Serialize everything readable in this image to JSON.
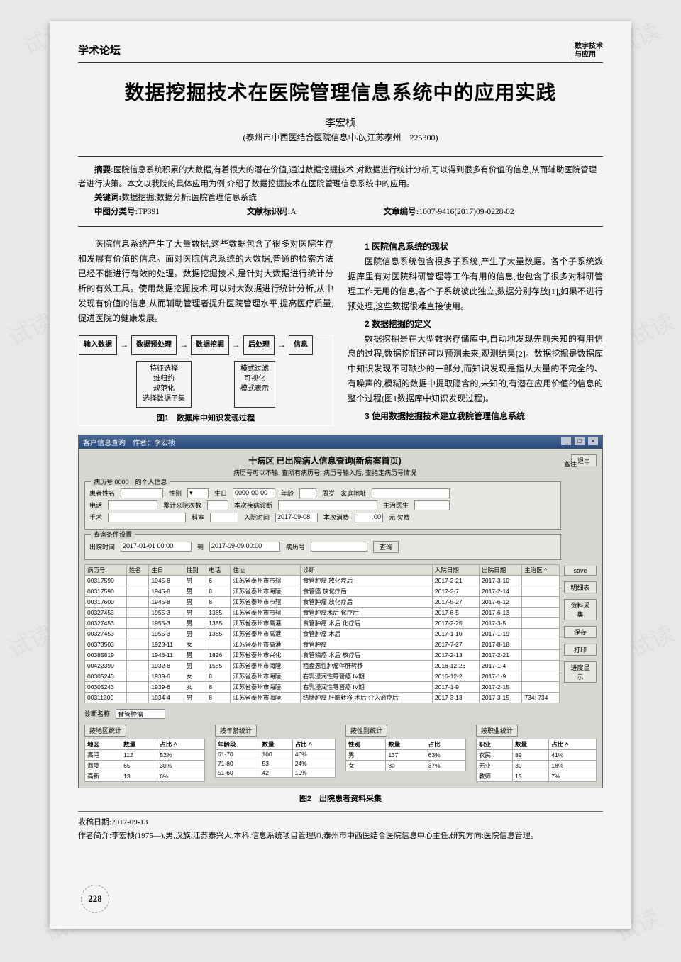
{
  "header": {
    "section": "学术论坛",
    "journal_l1": "数字技术",
    "journal_l2": "与应用"
  },
  "title": "数据挖掘技术在医院管理信息系统中的应用实践",
  "author": "李宏桢",
  "affiliation": "(泰州市中西医结合医院信息中心,江苏泰州　225300)",
  "abstract_label": "摘要:",
  "abstract": "医院信息系统积累的大数据,有着很大的潜在价值,通过数据挖掘技术,对数据进行统计分析,可以得到很多有价值的信息,从而辅助医院管理者进行决策。本文以我院的具体应用为例,介绍了数据挖掘技术在医院管理信息系统中的应用。",
  "keywords_label": "关键词:",
  "keywords": "数据挖掘;数据分析;医院管理信息系统",
  "meta": {
    "clc_label": "中图分类号:",
    "clc": "TP391",
    "doc_code_label": "文献标识码:",
    "doc_code": "A",
    "article_id_label": "文章编号:",
    "article_id": "1007-9416(2017)09-0228-02"
  },
  "body": {
    "left_p1": "医院信息系统产生了大量数据,这些数据包含了很多对医院生存和发展有价值的信息。面对医院信息系统的大数据,普通的检索方法已经不能进行有效的处理。数据挖掘技术,是针对大数据进行统计分析的有效工具。使用数据挖掘技术,可以对大数据进行统计分析,从中发现有价值的信息,从而辅助管理者提升医院管理水平,提高医疗质量,促进医院的健康发展。",
    "h1": "1 医院信息系统的现状",
    "p_h1": "医院信息系统包含很多子系统,产生了大量数据。各个子系统数据库里有对医院科研管理等工作有用的信息,也包含了很多对科研管理工作无用的信息,各个子系统彼此独立,数据分别存放[1],如果不进行预处理,这些数据很难直接使用。",
    "h2": "2 数据挖掘的定义",
    "p_h2": "数据挖掘是在大型数据存储库中,自动地发现先前未知的有用信息的过程,数据挖掘还可以预测未来,观测结果[2]。数据挖掘是数据库中知识发现不可缺少的一部分,而知识发现是指从大量的不完全的、有噪声的,模糊的数据中提取隐含的,未知的,有潜在应用价值的信息的整个过程(图1数据库中知识发现过程)。",
    "h3": "3 使用数据挖掘技术建立我院管理信息系统"
  },
  "flowchart": {
    "nodes": [
      "输入数据",
      "数据预处理",
      "数据挖掘",
      "后处理",
      "信息"
    ],
    "sub1": "特征选择\n维归约\n规范化\n选择数据子集",
    "sub2": "模式过滤\n可视化\n模式表示",
    "caption": "图1　数据库中知识发现过程"
  },
  "app": {
    "title": "客户信息查询　作者：李宏桢",
    "panel_title": "十病区 已出院病人信息查询(新病案首页)",
    "panel_sub": "病历号可以不输, 查所有病历号; 病历号输入后, 查指定病历号情况",
    "exit_btn": "退出",
    "remarks_label": "备注",
    "form": {
      "record_legend": "病历号 0000　的个人信息",
      "labels": {
        "name": "患者姓名",
        "sex": "性别",
        "birth": "生日",
        "birth_ph": "0000-00-00",
        "age": "年龄",
        "age_unit": "周岁",
        "addr": "家庭地址",
        "phone": "电话",
        "visits": "累计来院次数",
        "diag": "本次疾病诊断",
        "doctor": "主治医生",
        "surgery": "手术",
        "dept": "科室",
        "admit": "入院时间",
        "admit_v": "2017-09-08",
        "fee": "本次消费",
        "fee_v": ".00",
        "fee_unit": "元 欠费"
      },
      "cond_legend": "查询条件设置",
      "cond": {
        "from_label": "出院时间",
        "from": "2017-01-01 00:00",
        "to_label": "到",
        "to": "2017-09-09 00:00",
        "rec_label": "病历号",
        "search": "查询"
      }
    },
    "table": {
      "columns": [
        "病历号",
        "姓名",
        "生日",
        "性别",
        "电话",
        "住址",
        "诊断",
        "入院日期",
        "出院日期",
        "主治医 ^"
      ],
      "rows": [
        [
          "00317590",
          "",
          "1945-8",
          "男",
          "6",
          "江苏省泰州市市辖",
          "食管肿瘤 放化疗后",
          "2017-2-21",
          "2017-3-10",
          ""
        ],
        [
          "00317590",
          "",
          "1945-8",
          "男",
          "8",
          "江苏省泰州市海陵",
          "食管癌 放化疗后",
          "2017-2-7",
          "2017-2-14",
          ""
        ],
        [
          "00317600",
          "",
          "1945-8",
          "男",
          "8",
          "江苏省泰州市市辖",
          "食管肿瘤 放化疗后",
          "2017-5-27",
          "2017-6-12",
          ""
        ],
        [
          "00327453",
          "",
          "1955-3",
          "男",
          "1385",
          "江苏省泰州市市辖",
          "食管肿瘤术后 化疗后",
          "2017-6-5",
          "2017-6-13",
          ""
        ],
        [
          "00327453",
          "",
          "1955-3",
          "男",
          "1385",
          "江苏省泰州市高港",
          "食管肿瘤 术后 化疗后",
          "2017-2-25",
          "2017-3-5",
          ""
        ],
        [
          "00327453",
          "",
          "1955-3",
          "男",
          "1385",
          "江苏省泰州市高港",
          "食管肿瘤 术后",
          "2017-1-10",
          "2017-1-19",
          ""
        ],
        [
          "00373503",
          "",
          "1928-11",
          "女",
          "",
          "江苏省泰州市高港",
          "食管肿瘤",
          "2017-7-27",
          "2017-8-18",
          ""
        ],
        [
          "00385819",
          "",
          "1946-11",
          "男",
          "1826",
          "江苏省泰州市兴化",
          "食管鳞癌 术后 放疗后",
          "2017-2-13",
          "2017-2-21",
          ""
        ],
        [
          "00422390",
          "",
          "1932-8",
          "男",
          "1585",
          "江苏省泰州市海陵",
          "粗盘恶性肿瘤伴肝转移",
          "2016-12-26",
          "2017-1-4",
          ""
        ],
        [
          "00305243",
          "",
          "1939-6",
          "女",
          "8",
          "江苏省泰州市海陵",
          "右乳浸润性导管癌 IV期",
          "2016-12-2",
          "2017-1-9",
          ""
        ],
        [
          "00305243",
          "",
          "1939-6",
          "女",
          "8",
          "江苏省泰州市海陵",
          "右乳浸润性导管癌 IV期",
          "2017-1-9",
          "2017-2-15",
          ""
        ],
        [
          "00311300",
          "",
          "1934-4",
          "男",
          "8",
          "江苏省泰州市海陵",
          "结肠肿瘤 肝脏转移 术后 介入治疗后",
          "2017-3-13",
          "2017-3-15",
          "734: 734"
        ]
      ]
    },
    "side_buttons": [
      "save",
      "明细表",
      "资料采集",
      "保存",
      "打印",
      "进度显示"
    ],
    "diag_name_label": "诊断名称",
    "diag_name_val": "食管肿瘤",
    "stats": {
      "region": {
        "btn": "按地区统计",
        "cols": [
          "地区",
          "数量",
          "占比 ^"
        ],
        "rows": [
          [
            "高港",
            "112",
            "52%"
          ],
          [
            "海陵",
            "65",
            "30%"
          ],
          [
            "高新",
            "13",
            "6%"
          ]
        ]
      },
      "age": {
        "btn": "按年龄统计",
        "cols": [
          "年龄段",
          "数量",
          "占比 ^"
        ],
        "rows": [
          [
            "61-70",
            "100",
            "46%"
          ],
          [
            "71-80",
            "53",
            "24%"
          ],
          [
            "51-60",
            "42",
            "19%"
          ]
        ]
      },
      "sex": {
        "btn": "按性别统计",
        "cols": [
          "性别",
          "数量",
          "占比"
        ],
        "rows": [
          [
            "男",
            "137",
            "63%"
          ],
          [
            "女",
            "80",
            "37%"
          ]
        ]
      },
      "job": {
        "btn": "按职业统计",
        "cols": [
          "职业",
          "数量",
          "占比 ^"
        ],
        "rows": [
          [
            "农民",
            "89",
            "41%"
          ],
          [
            "无业",
            "39",
            "18%"
          ],
          [
            "教师",
            "15",
            "7%"
          ]
        ]
      }
    },
    "caption": "图2　出院患者资料采集"
  },
  "footer": {
    "received_label": "收稿日期:",
    "received": "2017-09-13",
    "bio_label": "作者简介:",
    "bio": "李宏桢(1975—),男,汉族,江苏泰兴人,本科,信息系统项目管理师,泰州市中西医结合医院信息中心主任,研究方向:医院信息管理。"
  },
  "page_number": "228",
  "watermarks": [
    "试读",
    "试读",
    "试读",
    "试读",
    "试读",
    "试读",
    "试读",
    "试读"
  ]
}
